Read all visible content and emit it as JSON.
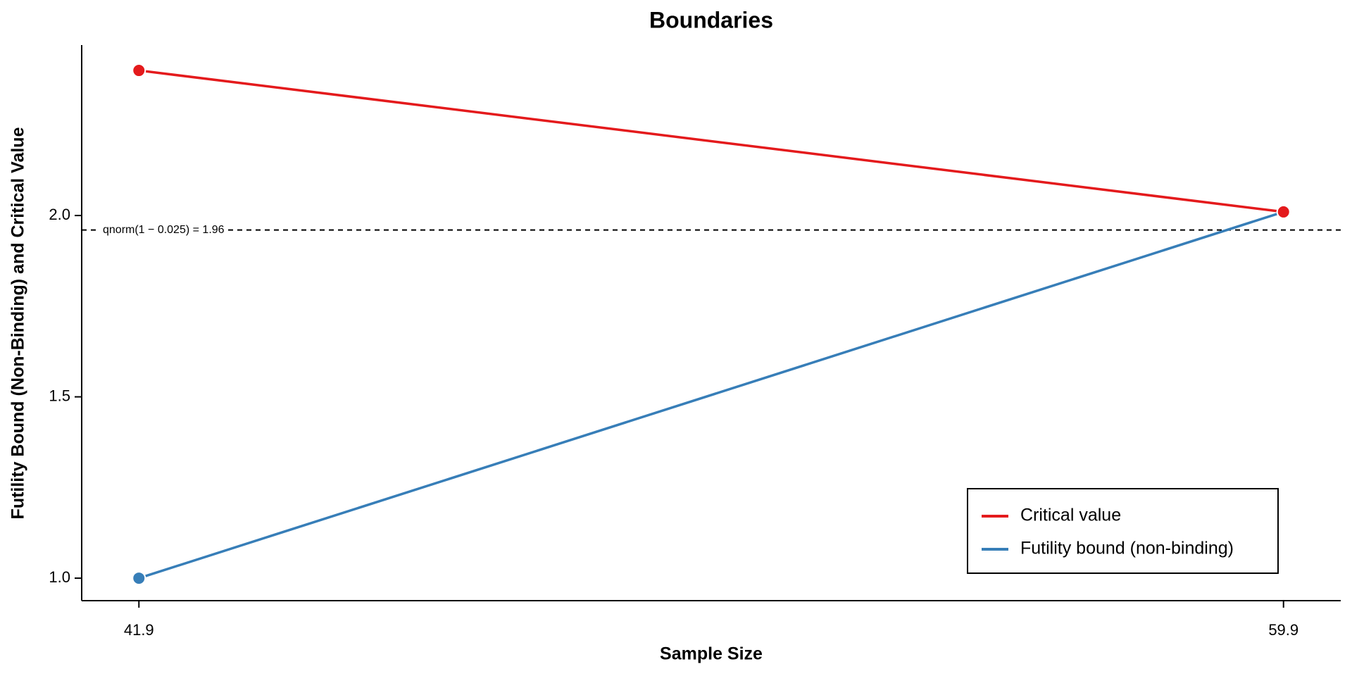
{
  "chart_data": {
    "type": "line",
    "title": "Boundaries",
    "x_label": "Sample Size",
    "y_label": "Futility Bound (Non-Binding) and Critical Value",
    "x": [
      41.9,
      59.9
    ],
    "series": [
      {
        "name": "Critical value",
        "color": "#e41a1c",
        "values": [
          2.4,
          2.01
        ]
      },
      {
        "name": "Futility bound (non-binding)",
        "color": "#377eb8",
        "values": [
          1.0,
          2.01
        ]
      }
    ],
    "xlim": [
      41.0,
      60.8
    ],
    "xticks": [
      41.9,
      59.9
    ],
    "ylim": [
      0.938,
      2.47
    ],
    "yticks": [
      {
        "value": 1,
        "label": "1.0"
      },
      1.5,
      {
        "value": 2,
        "label": "2.0"
      }
    ],
    "hline": {
      "value": 1.96,
      "label": "qnorm(1 − 0.025) = 1.96"
    },
    "legend": "bottom-right",
    "grid": false
  }
}
